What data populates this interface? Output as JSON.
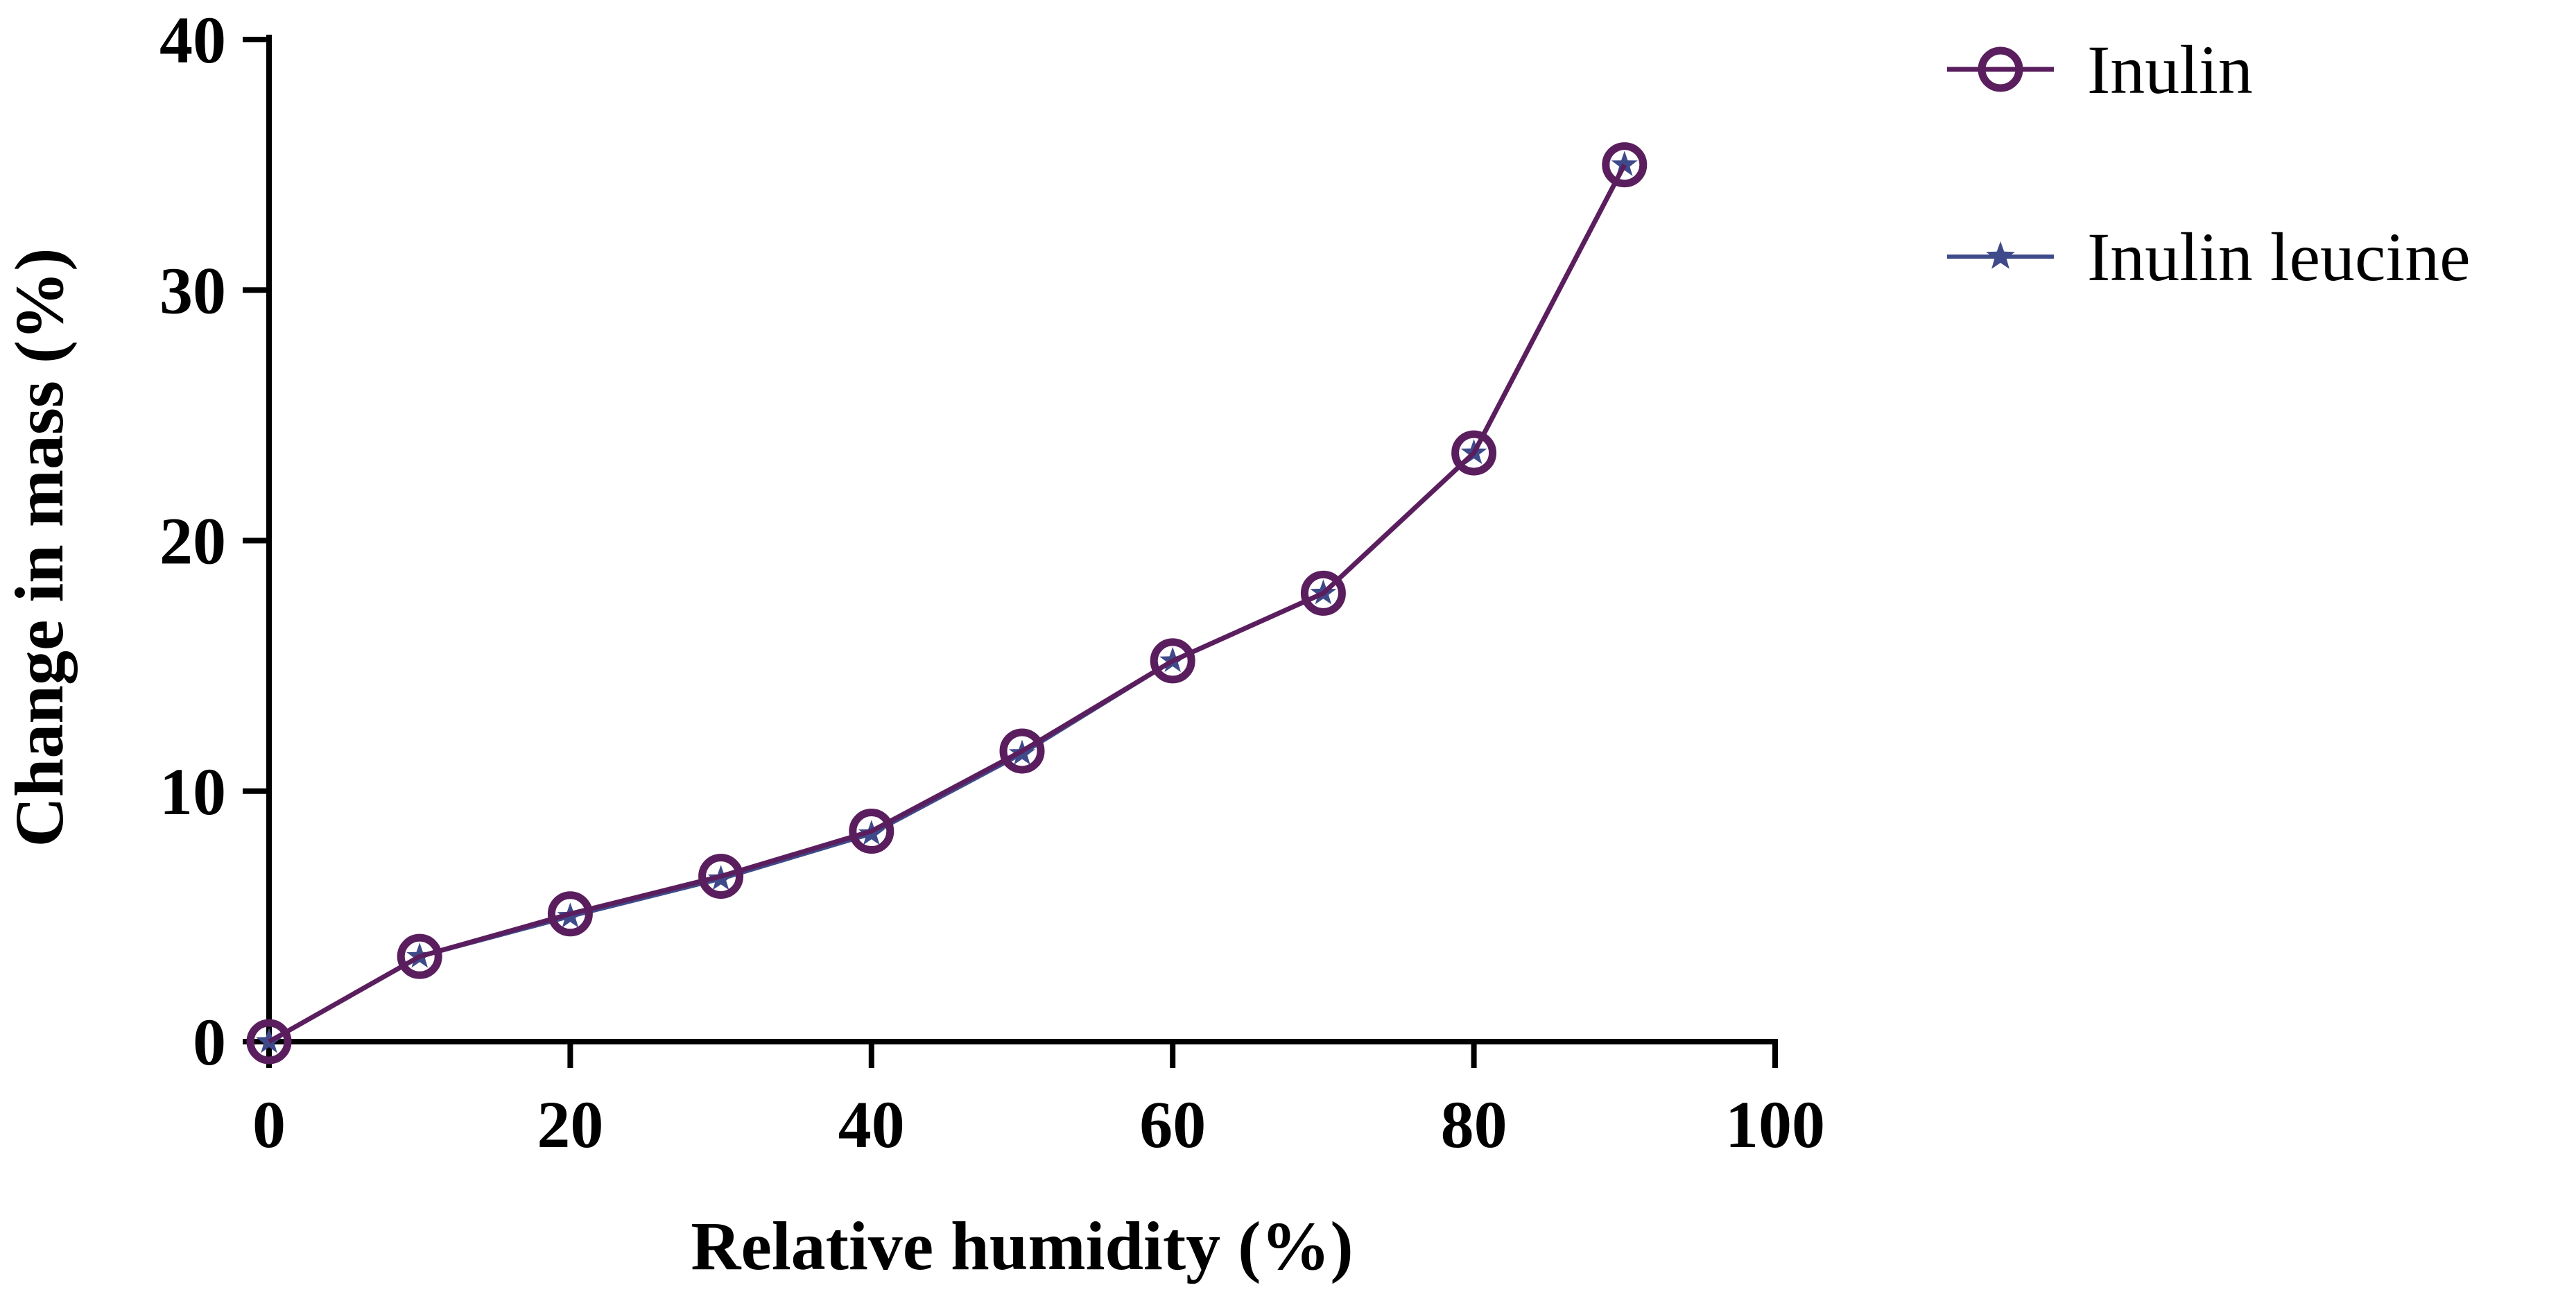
{
  "chart_data": {
    "type": "line",
    "title": "",
    "xlabel": "Relative humidity (%)",
    "ylabel": "Change in mass (%)",
    "xlim": [
      0,
      100
    ],
    "ylim": [
      0,
      40
    ],
    "x_ticks": [
      "0",
      "20",
      "40",
      "60",
      "80",
      "100"
    ],
    "y_ticks": [
      "0",
      "10",
      "20",
      "30",
      "40"
    ],
    "grid": false,
    "legend_position": "top-right",
    "series": [
      {
        "name": "Inulin",
        "marker": "open-circle",
        "color": "#5a1e5e",
        "x": [
          0,
          10,
          20,
          30,
          40,
          50,
          60,
          70,
          80,
          90
        ],
        "y": [
          0,
          3.4,
          5.1,
          6.6,
          8.4,
          11.6,
          15.2,
          17.9,
          23.5,
          35.0
        ]
      },
      {
        "name": "Inulin leucine",
        "marker": "star",
        "color": "#3f4a8a",
        "x": [
          0,
          10,
          20,
          30,
          40,
          50,
          60,
          70,
          80,
          90
        ],
        "y": [
          0,
          3.4,
          5.0,
          6.5,
          8.3,
          11.5,
          15.2,
          17.9,
          23.5,
          35.0
        ]
      }
    ]
  }
}
